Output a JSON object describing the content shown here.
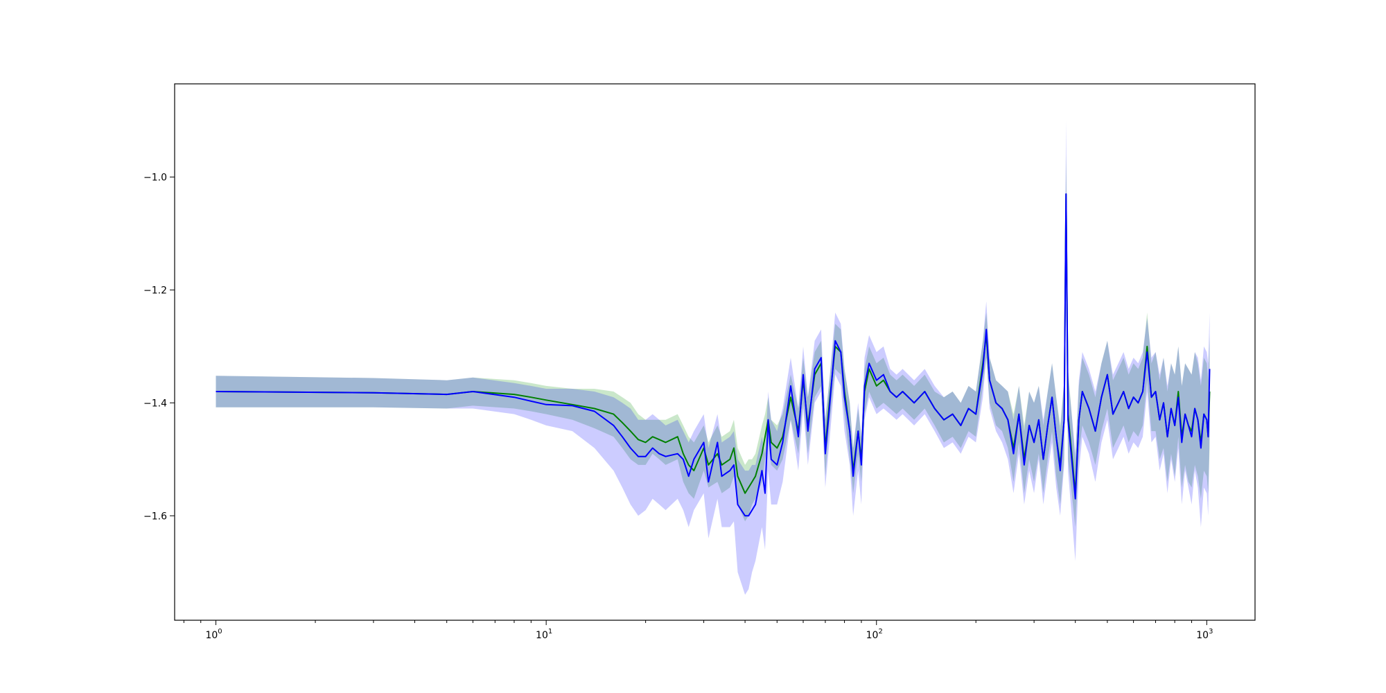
{
  "chart_data": {
    "type": "line",
    "title": "",
    "xlabel": "",
    "ylabel": "",
    "x_scale": "log",
    "xlim": [
      0.75,
      1400
    ],
    "ylim": [
      -1.785,
      -0.835
    ],
    "grid": false,
    "x_ticks": [
      {
        "value": 1,
        "base": "10",
        "exp": "0"
      },
      {
        "value": 10,
        "base": "10",
        "exp": "1"
      },
      {
        "value": 100,
        "base": "10",
        "exp": "2"
      },
      {
        "value": 1000,
        "base": "10",
        "exp": "3"
      }
    ],
    "y_ticks": [
      {
        "value": -1.0,
        "label": "−1.0"
      },
      {
        "value": -1.2,
        "label": "−1.2"
      },
      {
        "value": -1.4,
        "label": "−1.4"
      },
      {
        "value": -1.6,
        "label": "−1.6"
      }
    ],
    "series": [
      {
        "color": "#008000",
        "band_color": "#2ca02c",
        "band_opacity": 0.25,
        "x": [
          1,
          3,
          5,
          6,
          8,
          9,
          10,
          12,
          14,
          16,
          17,
          18,
          19,
          20,
          21,
          22,
          23,
          25,
          26,
          27,
          28,
          30,
          31,
          33,
          34,
          36,
          37,
          38,
          40,
          41,
          42,
          43,
          45,
          46,
          47,
          48,
          50,
          52,
          55,
          58,
          60,
          62,
          65,
          68,
          70,
          72,
          75,
          78,
          80,
          83,
          85,
          88,
          90,
          92,
          95,
          100,
          105,
          110,
          115,
          120,
          130,
          140,
          150,
          160,
          170,
          180,
          190,
          200,
          210,
          215,
          220,
          230,
          240,
          250,
          260,
          270,
          280,
          290,
          300,
          310,
          320,
          330,
          340,
          350,
          360,
          370,
          375,
          380,
          390,
          400,
          410,
          420,
          440,
          460,
          480,
          500,
          520,
          540,
          560,
          580,
          600,
          620,
          640,
          660,
          680,
          700,
          720,
          740,
          760,
          780,
          800,
          820,
          840,
          860,
          880,
          900,
          920,
          940,
          960,
          980,
          1000,
          1010,
          1020
        ],
        "y": [
          -1.38,
          -1.382,
          -1.385,
          -1.38,
          -1.385,
          -1.39,
          -1.395,
          -1.403,
          -1.41,
          -1.42,
          -1.435,
          -1.45,
          -1.465,
          -1.47,
          -1.46,
          -1.465,
          -1.47,
          -1.46,
          -1.49,
          -1.51,
          -1.52,
          -1.48,
          -1.51,
          -1.49,
          -1.51,
          -1.5,
          -1.48,
          -1.53,
          -1.56,
          -1.55,
          -1.54,
          -1.53,
          -1.49,
          -1.46,
          -1.43,
          -1.47,
          -1.48,
          -1.46,
          -1.39,
          -1.45,
          -1.36,
          -1.44,
          -1.35,
          -1.33,
          -1.48,
          -1.4,
          -1.3,
          -1.31,
          -1.38,
          -1.45,
          -1.52,
          -1.45,
          -1.5,
          -1.38,
          -1.34,
          -1.37,
          -1.36,
          -1.38,
          -1.39,
          -1.38,
          -1.4,
          -1.38,
          -1.41,
          -1.43,
          -1.42,
          -1.44,
          -1.41,
          -1.42,
          -1.33,
          -1.28,
          -1.36,
          -1.4,
          -1.41,
          -1.43,
          -1.48,
          -1.42,
          -1.5,
          -1.44,
          -1.47,
          -1.43,
          -1.5,
          -1.44,
          -1.39,
          -1.46,
          -1.51,
          -1.43,
          -1.03,
          -1.42,
          -1.49,
          -1.56,
          -1.43,
          -1.38,
          -1.41,
          -1.45,
          -1.39,
          -1.35,
          -1.42,
          -1.4,
          -1.38,
          -1.41,
          -1.39,
          -1.4,
          -1.38,
          -1.3,
          -1.39,
          -1.38,
          -1.43,
          -1.4,
          -1.46,
          -1.41,
          -1.44,
          -1.38,
          -1.46,
          -1.42,
          -1.44,
          -1.45,
          -1.41,
          -1.43,
          -1.47,
          -1.42,
          -1.43,
          -1.46,
          -1.38
        ],
        "y_lower": [
          -1.408,
          -1.408,
          -1.41,
          -1.405,
          -1.41,
          -1.415,
          -1.42,
          -1.43,
          -1.445,
          -1.46,
          -1.48,
          -1.5,
          -1.51,
          -1.51,
          -1.49,
          -1.5,
          -1.51,
          -1.5,
          -1.54,
          -1.56,
          -1.57,
          -1.52,
          -1.55,
          -1.54,
          -1.56,
          -1.55,
          -1.53,
          -1.58,
          -1.61,
          -1.6,
          -1.58,
          -1.57,
          -1.54,
          -1.5,
          -1.47,
          -1.51,
          -1.52,
          -1.5,
          -1.43,
          -1.49,
          -1.4,
          -1.49,
          -1.39,
          -1.37,
          -1.53,
          -1.44,
          -1.34,
          -1.35,
          -1.42,
          -1.5,
          -1.56,
          -1.49,
          -1.54,
          -1.42,
          -1.38,
          -1.41,
          -1.4,
          -1.41,
          -1.42,
          -1.41,
          -1.43,
          -1.41,
          -1.44,
          -1.47,
          -1.46,
          -1.48,
          -1.45,
          -1.46,
          -1.37,
          -1.32,
          -1.4,
          -1.44,
          -1.45,
          -1.48,
          -1.54,
          -1.47,
          -1.56,
          -1.5,
          -1.54,
          -1.49,
          -1.56,
          -1.5,
          -1.45,
          -1.53,
          -1.58,
          -1.5,
          -1.1,
          -1.5,
          -1.56,
          -1.62,
          -1.49,
          -1.44,
          -1.47,
          -1.51,
          -1.45,
          -1.41,
          -1.48,
          -1.46,
          -1.44,
          -1.47,
          -1.45,
          -1.46,
          -1.44,
          -1.36,
          -1.45,
          -1.45,
          -1.5,
          -1.48,
          -1.54,
          -1.49,
          -1.53,
          -1.46,
          -1.55,
          -1.51,
          -1.54,
          -1.55,
          -1.51,
          -1.53,
          -1.57,
          -1.52,
          -1.53,
          -1.56,
          -1.48
        ],
        "y_upper": [
          -1.352,
          -1.356,
          -1.36,
          -1.355,
          -1.36,
          -1.365,
          -1.37,
          -1.375,
          -1.375,
          -1.38,
          -1.39,
          -1.4,
          -1.42,
          -1.43,
          -1.43,
          -1.43,
          -1.43,
          -1.42,
          -1.44,
          -1.46,
          -1.47,
          -1.44,
          -1.47,
          -1.44,
          -1.46,
          -1.45,
          -1.43,
          -1.48,
          -1.51,
          -1.5,
          -1.5,
          -1.49,
          -1.44,
          -1.42,
          -1.39,
          -1.43,
          -1.44,
          -1.42,
          -1.35,
          -1.41,
          -1.32,
          -1.39,
          -1.31,
          -1.29,
          -1.43,
          -1.36,
          -1.26,
          -1.27,
          -1.34,
          -1.4,
          -1.48,
          -1.41,
          -1.46,
          -1.34,
          -1.3,
          -1.33,
          -1.32,
          -1.35,
          -1.36,
          -1.35,
          -1.37,
          -1.35,
          -1.38,
          -1.39,
          -1.38,
          -1.4,
          -1.37,
          -1.38,
          -1.29,
          -1.24,
          -1.32,
          -1.36,
          -1.37,
          -1.38,
          -1.42,
          -1.37,
          -1.44,
          -1.38,
          -1.4,
          -1.37,
          -1.44,
          -1.38,
          -1.33,
          -1.39,
          -1.44,
          -1.36,
          -0.96,
          -1.34,
          -1.42,
          -1.5,
          -1.37,
          -1.32,
          -1.35,
          -1.39,
          -1.33,
          -1.29,
          -1.36,
          -1.34,
          -1.32,
          -1.35,
          -1.33,
          -1.34,
          -1.32,
          -1.24,
          -1.33,
          -1.31,
          -1.36,
          -1.32,
          -1.38,
          -1.33,
          -1.35,
          -1.3,
          -1.37,
          -1.33,
          -1.34,
          -1.35,
          -1.31,
          -1.33,
          -1.37,
          -1.32,
          -1.33,
          -1.36,
          -1.28
        ]
      },
      {
        "color": "#0000ff",
        "band_color": "#0000ff",
        "band_opacity": 0.2,
        "x": [
          1,
          3,
          5,
          6,
          8,
          9,
          10,
          12,
          14,
          16,
          17,
          18,
          19,
          20,
          21,
          22,
          23,
          25,
          26,
          27,
          28,
          30,
          31,
          33,
          34,
          36,
          37,
          38,
          40,
          41,
          42,
          43,
          45,
          46,
          47,
          48,
          50,
          52,
          55,
          58,
          60,
          62,
          65,
          68,
          70,
          72,
          75,
          78,
          80,
          83,
          85,
          88,
          90,
          92,
          95,
          100,
          105,
          110,
          115,
          120,
          130,
          140,
          150,
          160,
          170,
          180,
          190,
          200,
          210,
          215,
          220,
          230,
          240,
          250,
          260,
          270,
          280,
          290,
          300,
          310,
          320,
          330,
          340,
          350,
          360,
          370,
          375,
          380,
          390,
          400,
          410,
          420,
          440,
          460,
          480,
          500,
          520,
          540,
          560,
          580,
          600,
          620,
          640,
          660,
          680,
          700,
          720,
          740,
          760,
          780,
          800,
          820,
          840,
          860,
          880,
          900,
          920,
          940,
          960,
          980,
          1000,
          1010,
          1020
        ],
        "y": [
          -1.38,
          -1.382,
          -1.385,
          -1.38,
          -1.39,
          -1.397,
          -1.403,
          -1.405,
          -1.415,
          -1.44,
          -1.46,
          -1.48,
          -1.495,
          -1.495,
          -1.48,
          -1.49,
          -1.495,
          -1.49,
          -1.5,
          -1.53,
          -1.5,
          -1.47,
          -1.54,
          -1.47,
          -1.53,
          -1.52,
          -1.51,
          -1.58,
          -1.6,
          -1.6,
          -1.59,
          -1.58,
          -1.52,
          -1.56,
          -1.43,
          -1.5,
          -1.51,
          -1.47,
          -1.37,
          -1.46,
          -1.35,
          -1.45,
          -1.34,
          -1.32,
          -1.49,
          -1.41,
          -1.29,
          -1.31,
          -1.39,
          -1.45,
          -1.53,
          -1.45,
          -1.51,
          -1.37,
          -1.33,
          -1.36,
          -1.35,
          -1.38,
          -1.39,
          -1.38,
          -1.4,
          -1.38,
          -1.41,
          -1.43,
          -1.42,
          -1.44,
          -1.41,
          -1.42,
          -1.34,
          -1.27,
          -1.36,
          -1.4,
          -1.41,
          -1.43,
          -1.49,
          -1.42,
          -1.51,
          -1.44,
          -1.47,
          -1.43,
          -1.5,
          -1.44,
          -1.39,
          -1.46,
          -1.52,
          -1.43,
          -1.03,
          -1.43,
          -1.5,
          -1.57,
          -1.43,
          -1.38,
          -1.41,
          -1.45,
          -1.39,
          -1.35,
          -1.42,
          -1.4,
          -1.38,
          -1.41,
          -1.39,
          -1.4,
          -1.38,
          -1.31,
          -1.39,
          -1.38,
          -1.43,
          -1.4,
          -1.46,
          -1.41,
          -1.44,
          -1.39,
          -1.47,
          -1.42,
          -1.44,
          -1.46,
          -1.41,
          -1.43,
          -1.48,
          -1.42,
          -1.43,
          -1.46,
          -1.34
        ],
        "y_lower": [
          -1.408,
          -1.408,
          -1.41,
          -1.41,
          -1.42,
          -1.43,
          -1.44,
          -1.45,
          -1.48,
          -1.52,
          -1.55,
          -1.58,
          -1.6,
          -1.59,
          -1.57,
          -1.58,
          -1.59,
          -1.57,
          -1.59,
          -1.62,
          -1.59,
          -1.56,
          -1.64,
          -1.57,
          -1.62,
          -1.62,
          -1.61,
          -1.7,
          -1.74,
          -1.73,
          -1.7,
          -1.68,
          -1.62,
          -1.66,
          -1.52,
          -1.58,
          -1.58,
          -1.54,
          -1.43,
          -1.52,
          -1.41,
          -1.51,
          -1.4,
          -1.38,
          -1.55,
          -1.47,
          -1.35,
          -1.37,
          -1.45,
          -1.51,
          -1.6,
          -1.52,
          -1.58,
          -1.43,
          -1.39,
          -1.42,
          -1.41,
          -1.42,
          -1.43,
          -1.42,
          -1.44,
          -1.42,
          -1.45,
          -1.48,
          -1.47,
          -1.49,
          -1.46,
          -1.47,
          -1.39,
          -1.32,
          -1.41,
          -1.45,
          -1.47,
          -1.5,
          -1.56,
          -1.49,
          -1.58,
          -1.52,
          -1.56,
          -1.5,
          -1.58,
          -1.52,
          -1.47,
          -1.55,
          -1.6,
          -1.51,
          -1.1,
          -1.52,
          -1.6,
          -1.68,
          -1.52,
          -1.46,
          -1.49,
          -1.54,
          -1.47,
          -1.43,
          -1.5,
          -1.48,
          -1.46,
          -1.49,
          -1.47,
          -1.48,
          -1.46,
          -1.38,
          -1.47,
          -1.46,
          -1.52,
          -1.49,
          -1.56,
          -1.5,
          -1.54,
          -1.48,
          -1.58,
          -1.52,
          -1.55,
          -1.58,
          -1.52,
          -1.55,
          -1.62,
          -1.55,
          -1.56,
          -1.6,
          -1.45
        ],
        "y_upper": [
          -1.352,
          -1.356,
          -1.36,
          -1.355,
          -1.365,
          -1.37,
          -1.375,
          -1.375,
          -1.38,
          -1.39,
          -1.4,
          -1.41,
          -1.43,
          -1.43,
          -1.42,
          -1.43,
          -1.44,
          -1.43,
          -1.45,
          -1.47,
          -1.45,
          -1.42,
          -1.48,
          -1.42,
          -1.47,
          -1.46,
          -1.45,
          -1.5,
          -1.52,
          -1.52,
          -1.51,
          -1.51,
          -1.46,
          -1.49,
          -1.38,
          -1.43,
          -1.45,
          -1.41,
          -1.32,
          -1.41,
          -1.3,
          -1.39,
          -1.29,
          -1.27,
          -1.43,
          -1.36,
          -1.24,
          -1.26,
          -1.34,
          -1.4,
          -1.48,
          -1.4,
          -1.46,
          -1.32,
          -1.28,
          -1.31,
          -1.3,
          -1.34,
          -1.35,
          -1.34,
          -1.36,
          -1.34,
          -1.37,
          -1.39,
          -1.38,
          -1.4,
          -1.37,
          -1.38,
          -1.29,
          -1.22,
          -1.32,
          -1.36,
          -1.37,
          -1.38,
          -1.43,
          -1.37,
          -1.45,
          -1.38,
          -1.4,
          -1.37,
          -1.43,
          -1.38,
          -1.33,
          -1.39,
          -1.45,
          -1.36,
          -0.9,
          -1.35,
          -1.42,
          -1.49,
          -1.36,
          -1.31,
          -1.34,
          -1.38,
          -1.33,
          -1.29,
          -1.35,
          -1.33,
          -1.31,
          -1.34,
          -1.32,
          -1.33,
          -1.31,
          -1.25,
          -1.32,
          -1.31,
          -1.35,
          -1.32,
          -1.37,
          -1.33,
          -1.35,
          -1.3,
          -1.37,
          -1.33,
          -1.34,
          -1.35,
          -1.31,
          -1.32,
          -1.36,
          -1.3,
          -1.31,
          -1.33,
          -1.24
        ]
      }
    ]
  }
}
